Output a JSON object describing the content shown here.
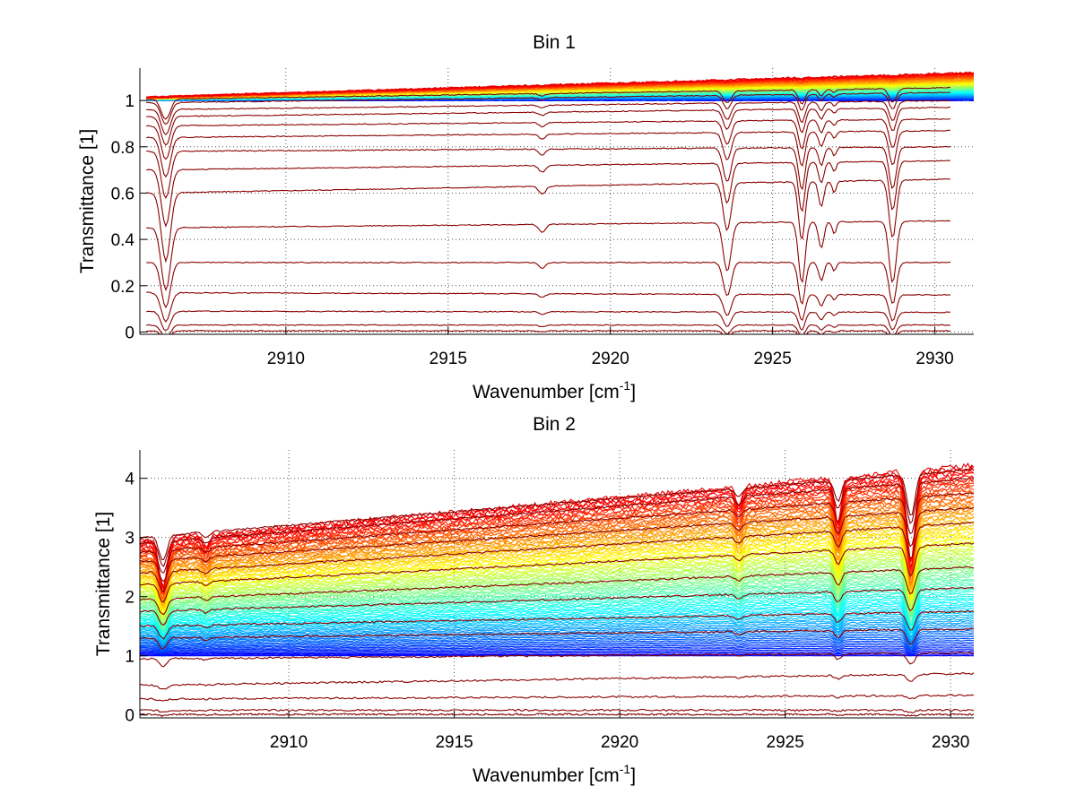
{
  "chart_data": [
    {
      "type": "line",
      "title": "Bin 1",
      "xlabel": "Wavenumber [cm",
      "xlabel_sup": "-1",
      "xlabel_suffix": "]",
      "ylabel": "Transmittance [1]",
      "xlim": [
        2905.5,
        2931.2
      ],
      "ylim": [
        -0.01,
        1.14
      ],
      "x_ticks": [
        2910,
        2915,
        2920,
        2925,
        2930
      ],
      "x_tick_labels": [
        "2910",
        "2915",
        "2920",
        "2925",
        "2930"
      ],
      "y_ticks": [
        0,
        0.2,
        0.4,
        0.6,
        0.8,
        1
      ],
      "y_tick_labels": [
        "0",
        "0.2",
        "0.4",
        "0.6",
        "0.8",
        "1"
      ],
      "grid": "dotted",
      "x_range_data": [
        2905.7,
        2931.2
      ],
      "colored_bundle": {
        "x_end": 2931.2,
        "baseline_y": 1.0,
        "start_y": 1.015,
        "end_y": 1.12,
        "count": 40
      },
      "absorption_lines": [
        {
          "x": 2906.3,
          "w": 0.14,
          "d": 0.32
        },
        {
          "x": 2917.9,
          "w": 0.1,
          "d": 0.04
        },
        {
          "x": 2923.6,
          "w": 0.12,
          "d": 0.24
        },
        {
          "x": 2925.9,
          "w": 0.1,
          "d": 0.3
        },
        {
          "x": 2926.5,
          "w": 0.08,
          "d": 0.13
        },
        {
          "x": 2926.9,
          "w": 0.06,
          "d": 0.06
        },
        {
          "x": 2928.7,
          "w": 0.11,
          "d": 0.3
        }
      ],
      "dark_series": [
        {
          "y_start": 1.005,
          "y_end": 1.055
        },
        {
          "y_start": 0.99,
          "y_end": 1.035
        },
        {
          "y_start": 0.96,
          "y_end": 1.0
        },
        {
          "y_start": 0.93,
          "y_end": 0.97
        },
        {
          "y_start": 0.89,
          "y_end": 0.92
        },
        {
          "y_start": 0.84,
          "y_end": 0.87
        },
        {
          "y_start": 0.78,
          "y_end": 0.8
        },
        {
          "y_start": 0.7,
          "y_end": 0.74
        },
        {
          "y_start": 0.6,
          "y_end": 0.66
        },
        {
          "y_start": 0.45,
          "y_end": 0.48
        },
        {
          "y_start": 0.3,
          "y_end": 0.3
        },
        {
          "y_start": 0.17,
          "y_end": 0.16
        },
        {
          "y_start": 0.09,
          "y_end": 0.085
        },
        {
          "y_start": 0.03,
          "y_end": 0.03
        },
        {
          "y_start": 0.005,
          "y_end": 0.005
        }
      ]
    },
    {
      "type": "line",
      "title": "Bin 2",
      "xlabel": "Wavenumber [cm",
      "xlabel_sup": "-1",
      "xlabel_suffix": "]",
      "ylabel": "Transmittance [1]",
      "xlim": [
        2905.5,
        2930.7
      ],
      "ylim": [
        -0.05,
        4.48
      ],
      "x_ticks": [
        2910,
        2915,
        2920,
        2925,
        2930
      ],
      "x_tick_labels": [
        "2910",
        "2915",
        "2920",
        "2925",
        "2930"
      ],
      "y_ticks": [
        0,
        1,
        2,
        3,
        4
      ],
      "y_tick_labels": [
        "0",
        "1",
        "2",
        "3",
        "4"
      ],
      "grid": "dotted",
      "x_range_data": [
        2905.5,
        2930.7
      ],
      "colored_bundle": {
        "x_end": 2930.7,
        "baseline_y": 1.0,
        "start_y": 2.95,
        "end_y": 4.22,
        "count": 90
      },
      "absorption_lines": [
        {
          "x": 2906.2,
          "w": 0.12,
          "d": 0.45
        },
        {
          "x": 2907.5,
          "w": 0.1,
          "d": 0.1
        },
        {
          "x": 2923.6,
          "w": 0.1,
          "d": 0.12
        },
        {
          "x": 2926.6,
          "w": 0.1,
          "d": 0.28
        },
        {
          "x": 2928.8,
          "w": 0.12,
          "d": 0.55
        }
      ],
      "dark_series": [
        {
          "y_start": 3.0,
          "y_end": 4.15
        },
        {
          "y_start": 2.9,
          "y_end": 4.0
        },
        {
          "y_start": 2.75,
          "y_end": 3.75
        },
        {
          "y_start": 2.6,
          "y_end": 3.5
        },
        {
          "y_start": 2.4,
          "y_end": 3.25
        },
        {
          "y_start": 2.2,
          "y_end": 2.9
        },
        {
          "y_start": 1.95,
          "y_end": 2.5
        },
        {
          "y_start": 1.75,
          "y_end": 2.15
        },
        {
          "y_start": 1.5,
          "y_end": 1.75
        },
        {
          "y_start": 1.3,
          "y_end": 1.45
        },
        {
          "y_start": 0.95,
          "y_end": 1.05
        },
        {
          "y_start": 0.5,
          "y_end": 0.7
        },
        {
          "y_start": 0.27,
          "y_end": 0.33
        },
        {
          "y_start": 0.08,
          "y_end": 0.08
        },
        {
          "y_start": 0.01,
          "y_end": 0.01
        }
      ]
    }
  ]
}
